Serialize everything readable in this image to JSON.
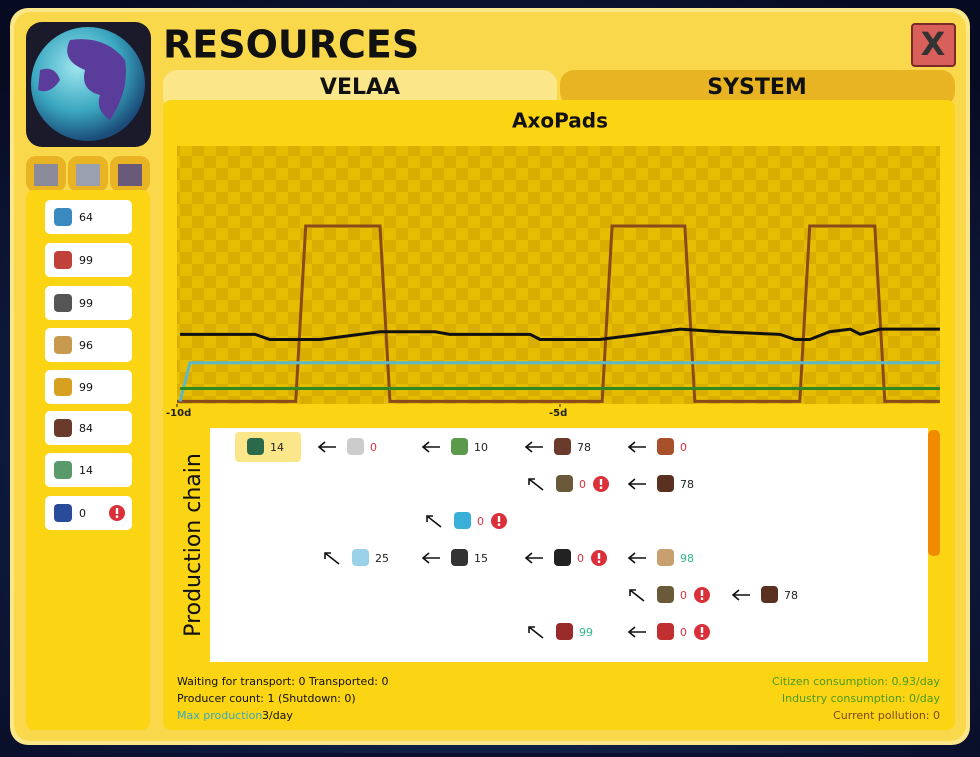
{
  "header": {
    "title": "RESOURCES",
    "close": "X"
  },
  "tabs": [
    "VELAA",
    "SYSTEM"
  ],
  "sidebar": {
    "items": [
      {
        "value": 64
      },
      {
        "value": 99
      },
      {
        "value": 99
      },
      {
        "value": 96
      },
      {
        "value": 99
      },
      {
        "value": 84
      },
      {
        "value": 14
      },
      {
        "value": 0,
        "alert": true
      }
    ]
  },
  "chart_data": {
    "type": "line",
    "title": "AxoPads",
    "xlim": [
      -10,
      0
    ],
    "ylim": [
      0,
      100
    ],
    "xticks": [
      {
        "value": -10,
        "label": "-10d"
      },
      {
        "value": -5,
        "label": "-5d"
      }
    ],
    "series": [
      {
        "color": "#8a4a1c",
        "x": [
          -10,
          -8.45,
          -8.32,
          -7.35,
          -7.22,
          -4.45,
          -4.32,
          -3.37,
          -3.24,
          -1.87,
          -1.74,
          -0.89,
          -0.76,
          -0.04
        ],
        "values": [
          1,
          1,
          69,
          69,
          1,
          1,
          69,
          69,
          1,
          1,
          69,
          69,
          1,
          1
        ]
      },
      {
        "color": "#111111",
        "x": [
          -9.96,
          -8.98,
          -8.79,
          -8.13,
          -7.35,
          -6.63,
          -6.44,
          -5.39,
          -5.26,
          -4.48,
          -3.43,
          -2.91,
          -2.13,
          -1.93,
          -1.74,
          -1.48,
          -1.21,
          -1.08,
          -0.82,
          -0.04
        ],
        "values": [
          27,
          27,
          25,
          25,
          28,
          28,
          27,
          27,
          25,
          25,
          29,
          28,
          27,
          25,
          25,
          28,
          29,
          27,
          29,
          29
        ]
      },
      {
        "color": "#5fb8c8",
        "x": [
          -9.96,
          -9.83,
          -0.04
        ],
        "values": [
          1,
          16,
          16
        ]
      },
      {
        "color": "#2e8a1e",
        "x": [
          -9.96,
          -0.04
        ],
        "values": [
          6,
          6
        ]
      }
    ]
  },
  "production_chain": {
    "title": "Production chain",
    "nodes": [
      {
        "value": 14,
        "color": "#222222",
        "highlight": true
      },
      {
        "value": 0,
        "color": "#e03040"
      },
      {
        "value": 10,
        "color": "#222222"
      },
      {
        "value": 78,
        "color": "#222222"
      },
      {
        "value": 0,
        "color": "#e03040"
      },
      {
        "value": 0,
        "color": "#e03040",
        "alert": true
      },
      {
        "value": 78,
        "color": "#222222"
      },
      {
        "value": 0,
        "color": "#e03040",
        "alert": true
      },
      {
        "value": 25,
        "color": "#222222"
      },
      {
        "value": 15,
        "color": "#222222"
      },
      {
        "value": 0,
        "color": "#e03040",
        "alert": true
      },
      {
        "value": 98,
        "color": "#2fb58a"
      },
      {
        "value": 0,
        "color": "#e03040",
        "alert": true
      },
      {
        "value": 78,
        "color": "#222222"
      },
      {
        "value": 99,
        "color": "#2fb58a"
      },
      {
        "value": 0,
        "color": "#e03040",
        "alert": true
      }
    ]
  },
  "footer": {
    "left": [
      "Waiting for transport: 0 Transported: 0",
      "Producer count: 1 (Shutdown: 0)"
    ],
    "max_label": "Max production:",
    "max_value": "3/day",
    "right": [
      "Citizen consumption: 0.93/day",
      "Industry consumption: 0/day",
      "Current pollution: 0"
    ]
  }
}
